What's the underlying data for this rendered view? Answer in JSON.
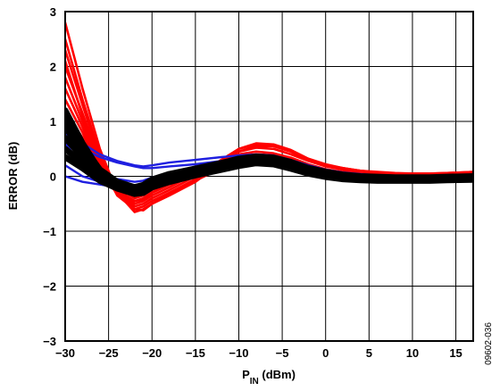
{
  "chart_data": {
    "type": "line",
    "xlabel": "P",
    "xlabel_sub": "IN",
    "xlabel_unit": " (dBm)",
    "ylabel": "ERROR (dB)",
    "xlim": [
      -30,
      17
    ],
    "ylim": [
      -3,
      3
    ],
    "grid": true,
    "x_ticks": [
      -30,
      -25,
      -20,
      -15,
      -10,
      -5,
      0,
      5,
      10,
      15
    ],
    "x_tick_labels": [
      "−30",
      "−25",
      "−20",
      "−15",
      "−10",
      "−5",
      "0",
      "5",
      "10",
      "15"
    ],
    "y_ticks": [
      3,
      2,
      1,
      0,
      -1,
      -2,
      -3
    ],
    "y_tick_labels": [
      "3",
      "2",
      "1",
      "0",
      "−1",
      "−2",
      "−3"
    ],
    "figure_id": "09602-036",
    "colors": {
      "red": "#ff0000",
      "blue": "#1f1fe0",
      "black": "#000000",
      "grid": "#000000"
    },
    "x": [
      -30,
      -28,
      -26,
      -24,
      -22,
      -21,
      -20,
      -18,
      -15,
      -12,
      -10,
      -8,
      -6,
      -4,
      -2,
      0,
      2,
      4,
      6,
      8,
      10,
      12,
      14,
      17
    ],
    "series": [
      {
        "color": "red",
        "values": [
          2.8,
          1.6,
          0.5,
          -0.3,
          -0.65,
          -0.6,
          -0.5,
          -0.35,
          -0.1,
          0.25,
          0.45,
          0.55,
          0.55,
          0.45,
          0.3,
          0.2,
          0.15,
          0.1,
          0.07,
          0.05,
          0.05,
          0.05,
          0.06,
          0.08
        ]
      },
      {
        "color": "red",
        "values": [
          2.5,
          1.4,
          0.4,
          -0.3,
          -0.6,
          -0.55,
          -0.45,
          -0.3,
          -0.05,
          0.3,
          0.5,
          0.6,
          0.58,
          0.48,
          0.32,
          0.22,
          0.15,
          0.1,
          0.08,
          0.06,
          0.05,
          0.05,
          0.06,
          0.08
        ]
      },
      {
        "color": "red",
        "values": [
          2.3,
          1.3,
          0.35,
          -0.25,
          -0.55,
          -0.5,
          -0.4,
          -0.25,
          0.0,
          0.3,
          0.5,
          0.58,
          0.55,
          0.45,
          0.3,
          0.2,
          0.14,
          0.1,
          0.07,
          0.05,
          0.04,
          0.04,
          0.05,
          0.07
        ]
      },
      {
        "color": "red",
        "values": [
          2.0,
          1.15,
          0.3,
          -0.2,
          -0.5,
          -0.45,
          -0.35,
          -0.2,
          0.05,
          0.3,
          0.45,
          0.52,
          0.5,
          0.4,
          0.28,
          0.18,
          0.12,
          0.08,
          0.06,
          0.04,
          0.03,
          0.03,
          0.04,
          0.06
        ]
      },
      {
        "color": "red",
        "values": [
          1.8,
          1.0,
          0.2,
          -0.25,
          -0.45,
          -0.4,
          -0.3,
          -0.15,
          0.05,
          0.25,
          0.4,
          0.45,
          0.42,
          0.34,
          0.22,
          0.13,
          0.08,
          0.05,
          0.03,
          0.02,
          0.01,
          0.01,
          0.02,
          0.03
        ]
      },
      {
        "color": "red",
        "values": [
          1.6,
          0.9,
          0.15,
          -0.2,
          -0.4,
          -0.35,
          -0.25,
          -0.12,
          0.03,
          0.2,
          0.35,
          0.4,
          0.38,
          0.3,
          0.18,
          0.1,
          0.05,
          0.02,
          0.0,
          -0.01,
          -0.02,
          -0.02,
          -0.01,
          0.0
        ]
      },
      {
        "color": "red",
        "values": [
          1.4,
          0.8,
          0.1,
          -0.2,
          -0.35,
          -0.3,
          -0.2,
          -0.1,
          0.05,
          0.18,
          0.3,
          0.35,
          0.33,
          0.26,
          0.15,
          0.07,
          0.02,
          -0.01,
          -0.03,
          -0.04,
          -0.04,
          -0.04,
          -0.03,
          -0.02
        ]
      },
      {
        "color": "red",
        "values": [
          1.2,
          0.7,
          0.05,
          -0.25,
          -0.35,
          -0.3,
          -0.22,
          -0.12,
          0.0,
          0.1,
          0.2,
          0.24,
          0.22,
          0.16,
          0.07,
          0.0,
          -0.04,
          -0.06,
          -0.07,
          -0.07,
          -0.07,
          -0.07,
          -0.06,
          -0.05
        ]
      },
      {
        "color": "red",
        "values": [
          2.1,
          1.1,
          0.25,
          -0.35,
          -0.6,
          -0.62,
          -0.5,
          -0.32,
          -0.08,
          0.15,
          0.3,
          0.38,
          0.35,
          0.25,
          0.12,
          0.02,
          -0.03,
          -0.06,
          -0.08,
          -0.08,
          -0.08,
          -0.08,
          -0.07,
          -0.05
        ]
      },
      {
        "color": "red",
        "values": [
          1.0,
          0.55,
          0.0,
          -0.3,
          -0.45,
          -0.42,
          -0.3,
          -0.15,
          0.02,
          0.12,
          0.2,
          0.22,
          0.2,
          0.14,
          0.05,
          -0.02,
          -0.06,
          -0.08,
          -0.09,
          -0.09,
          -0.09,
          -0.08,
          -0.07,
          -0.06
        ]
      },
      {
        "color": "blue",
        "values": [
          0.2,
          0.0,
          -0.1,
          -0.15,
          -0.18,
          -0.15,
          -0.05,
          0.05,
          0.12,
          0.2,
          0.25,
          0.28,
          0.26,
          0.2,
          0.12,
          0.06,
          0.03,
          0.02,
          0.01,
          0.0,
          0.0,
          0.0,
          0.01,
          0.02
        ]
      },
      {
        "color": "blue",
        "values": [
          0.0,
          -0.1,
          -0.15,
          -0.2,
          -0.22,
          -0.18,
          -0.1,
          0.0,
          0.08,
          0.15,
          0.2,
          0.23,
          0.22,
          0.17,
          0.1,
          0.05,
          0.02,
          0.01,
          0.0,
          0.0,
          0.0,
          0.0,
          0.0,
          0.01
        ]
      },
      {
        "color": "blue",
        "values": [
          1.0,
          0.6,
          0.4,
          0.28,
          0.2,
          0.18,
          0.2,
          0.25,
          0.3,
          0.35,
          0.38,
          0.4,
          0.38,
          0.3,
          0.2,
          0.12,
          0.07,
          0.04,
          0.02,
          0.01,
          0.0,
          0.0,
          0.01,
          0.02
        ]
      },
      {
        "color": "blue",
        "values": [
          0.8,
          0.5,
          0.35,
          0.25,
          0.18,
          0.15,
          0.15,
          0.18,
          0.22,
          0.28,
          0.32,
          0.34,
          0.32,
          0.25,
          0.16,
          0.09,
          0.05,
          0.03,
          0.01,
          0.0,
          0.0,
          0.0,
          0.0,
          0.01
        ]
      },
      {
        "color": "blue",
        "values": [
          0.6,
          0.2,
          0.05,
          -0.05,
          -0.1,
          -0.08,
          -0.02,
          0.05,
          0.12,
          0.2,
          0.25,
          0.28,
          0.27,
          0.2,
          0.12,
          0.07,
          0.04,
          0.02,
          0.01,
          0.0,
          0.0,
          0.0,
          0.01,
          0.01
        ]
      },
      {
        "color": "black",
        "values": [
          1.2,
          0.6,
          0.1,
          -0.15,
          -0.25,
          -0.2,
          -0.1,
          0.0,
          0.1,
          0.2,
          0.28,
          0.32,
          0.3,
          0.22,
          0.12,
          0.05,
          0.01,
          -0.02,
          -0.03,
          -0.04,
          -0.04,
          -0.04,
          -0.03,
          -0.02
        ]
      },
      {
        "color": "black",
        "values": [
          0.9,
          0.45,
          0.05,
          -0.15,
          -0.25,
          -0.22,
          -0.12,
          -0.02,
          0.08,
          0.18,
          0.25,
          0.3,
          0.28,
          0.2,
          0.1,
          0.03,
          -0.01,
          -0.04,
          -0.05,
          -0.05,
          -0.05,
          -0.05,
          -0.04,
          -0.03
        ]
      },
      {
        "color": "black",
        "values": [
          0.7,
          0.35,
          0.0,
          -0.18,
          -0.28,
          -0.25,
          -0.15,
          -0.05,
          0.06,
          0.16,
          0.23,
          0.28,
          0.26,
          0.18,
          0.08,
          0.01,
          -0.03,
          -0.05,
          -0.06,
          -0.06,
          -0.06,
          -0.06,
          -0.05,
          -0.04
        ]
      },
      {
        "color": "black",
        "values": [
          0.5,
          0.25,
          -0.05,
          -0.2,
          -0.3,
          -0.28,
          -0.18,
          -0.08,
          0.04,
          0.14,
          0.21,
          0.26,
          0.24,
          0.16,
          0.06,
          0.0,
          -0.04,
          -0.06,
          -0.07,
          -0.07,
          -0.07,
          -0.07,
          -0.06,
          -0.05
        ]
      },
      {
        "color": "black",
        "values": [
          0.35,
          0.15,
          -0.08,
          -0.22,
          -0.32,
          -0.3,
          -0.2,
          -0.1,
          0.02,
          0.12,
          0.19,
          0.24,
          0.22,
          0.14,
          0.05,
          -0.01,
          -0.05,
          -0.07,
          -0.08,
          -0.08,
          -0.08,
          -0.08,
          -0.07,
          -0.06
        ]
      },
      {
        "color": "black",
        "values": [
          1.05,
          0.55,
          0.12,
          -0.1,
          -0.2,
          -0.16,
          -0.06,
          0.04,
          0.14,
          0.24,
          0.32,
          0.36,
          0.34,
          0.26,
          0.15,
          0.08,
          0.03,
          0.0,
          -0.01,
          -0.02,
          -0.02,
          -0.02,
          -0.01,
          0.0
        ]
      }
    ]
  }
}
